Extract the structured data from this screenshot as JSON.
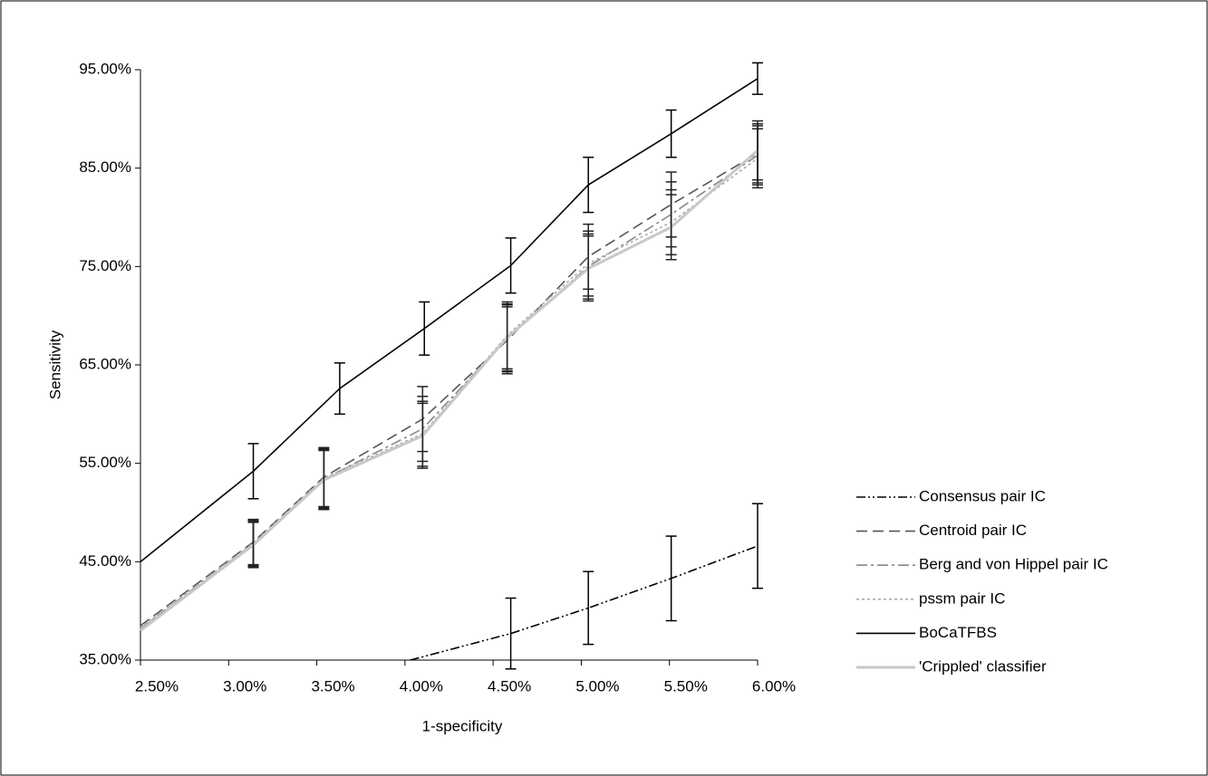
{
  "chart_data": {
    "type": "line",
    "xlabel": "1-specificity",
    "ylabel": "Sensitivity",
    "xlim": [
      2.5,
      6.0
    ],
    "xticks": [
      {
        "value": 2.5,
        "label": "2.50%"
      },
      {
        "value": 3.0,
        "label": "3.00%"
      },
      {
        "value": 3.5,
        "label": "3.50%"
      },
      {
        "value": 4.0,
        "label": "4.00%"
      },
      {
        "value": 4.5,
        "label": "4.50%"
      },
      {
        "value": 5.0,
        "label": "5.00%"
      },
      {
        "value": 5.5,
        "label": "5.50%"
      },
      {
        "value": 6.0,
        "label": "6.00%"
      }
    ],
    "ylim": [
      35,
      95
    ],
    "yticks": [
      {
        "value": 35,
        "label": "35.00%"
      },
      {
        "value": 45,
        "label": "45.00%"
      },
      {
        "value": 55,
        "label": "55.00%"
      },
      {
        "value": 65,
        "label": "65.00%"
      },
      {
        "value": 75,
        "label": "75.00%"
      },
      {
        "value": 85,
        "label": "85.00%"
      },
      {
        "value": 95,
        "label": "95.00%"
      }
    ],
    "grid": false,
    "legend": "right",
    "series": [
      {
        "name": "Consensus pair IC",
        "color": "#000000",
        "line_style": "dash-dot-dot",
        "x": [
          4.03,
          4.6,
          5.04,
          5.51,
          6.0
        ],
        "values": [
          35.0,
          37.7,
          40.3,
          43.3,
          46.6
        ],
        "errors": [
          null,
          3.6,
          3.7,
          4.3,
          4.3
        ]
      },
      {
        "name": "Centroid pair IC",
        "color": "#555555",
        "line_style": "dash",
        "x": [
          2.5,
          3.14,
          3.54,
          4.1,
          4.58,
          5.04,
          5.51,
          6.0
        ],
        "values": [
          38.5,
          47.0,
          53.6,
          59.5,
          67.5,
          76.0,
          81.3,
          86.5
        ],
        "errors": [
          null,
          2.3,
          3.0,
          3.3,
          3.4,
          3.3,
          3.3,
          3.0
        ]
      },
      {
        "name": "Berg and von Hippel pair IC",
        "color": "#888888",
        "line_style": "dash-dot",
        "x": [
          2.5,
          3.14,
          3.54,
          4.1,
          4.58,
          5.04,
          5.51,
          6.0
        ],
        "values": [
          38.2,
          46.8,
          53.4,
          58.5,
          67.7,
          75.0,
          80.3,
          86.3
        ],
        "errors": [
          null,
          2.3,
          3.0,
          3.3,
          3.4,
          3.3,
          3.3,
          3.0
        ]
      },
      {
        "name": "pssm pair IC",
        "color": "#aaaaaa",
        "line_style": "dot",
        "x": [
          2.5,
          3.14,
          3.54,
          4.1,
          4.58,
          5.04,
          5.51,
          6.0
        ],
        "values": [
          38.3,
          46.9,
          53.5,
          58.0,
          68.0,
          75.3,
          79.5,
          86.0
        ],
        "errors": [
          null,
          2.3,
          3.0,
          3.3,
          3.4,
          3.3,
          3.3,
          3.0
        ]
      },
      {
        "name": "BoCaTFBS",
        "color": "#000000",
        "line_style": "solid",
        "x": [
          2.5,
          3.14,
          3.63,
          4.11,
          4.6,
          5.04,
          5.51,
          6.0
        ],
        "values": [
          45.0,
          54.2,
          62.6,
          68.7,
          75.1,
          83.3,
          88.5,
          94.1
        ],
        "errors": [
          null,
          2.8,
          2.6,
          2.7,
          2.8,
          2.8,
          2.4,
          1.6
        ]
      },
      {
        "name": "'Crippled' classifier",
        "color": "#c8c8c8",
        "line_style": "thick",
        "x": [
          2.5,
          3.14,
          3.54,
          4.1,
          4.58,
          5.04,
          5.51,
          6.0
        ],
        "values": [
          38.0,
          46.7,
          53.3,
          57.8,
          67.8,
          74.8,
          79.0,
          86.8
        ],
        "errors": [
          null,
          2.3,
          3.0,
          3.3,
          3.4,
          3.3,
          3.3,
          3.0
        ]
      }
    ]
  }
}
